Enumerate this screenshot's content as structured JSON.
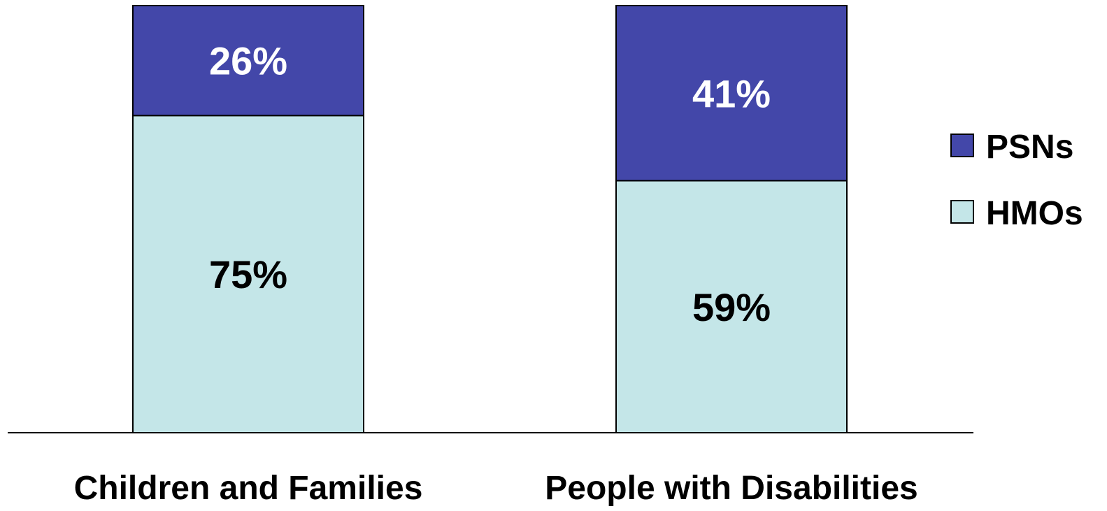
{
  "chart_data": {
    "type": "bar",
    "stacked": true,
    "percent": true,
    "categories": [
      "Children and Families",
      "People with Disabilities"
    ],
    "series": [
      {
        "name": "HMOs",
        "values": [
          75,
          59
        ],
        "labels": [
          "75%",
          "59%"
        ],
        "color": "#c4e6e8",
        "label_color": "#000000"
      },
      {
        "name": "PSNs",
        "values": [
          26,
          41
        ],
        "labels": [
          "26%",
          "41%"
        ],
        "color": "#4347a9",
        "label_color": "#ffffff"
      }
    ],
    "legend": {
      "position": "right",
      "items": [
        {
          "name": "PSNs",
          "color": "#4347a9"
        },
        {
          "name": "HMOs",
          "color": "#c4e6e8"
        }
      ]
    },
    "title": "",
    "xlabel": "",
    "ylabel": "",
    "ylim": [
      0,
      100
    ],
    "grid": false
  }
}
